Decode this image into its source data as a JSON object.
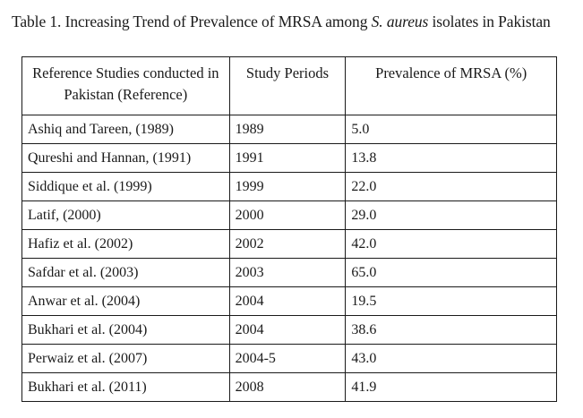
{
  "caption": {
    "prefix": "Table 1. Increasing Trend of Prevalence of MRSA among ",
    "italic": "S. aureus",
    "suffix": " isolates in Pakistan"
  },
  "columns": [
    "Reference Studies conducted in Pakistan (Reference)",
    "Study Periods",
    "Prevalence of MRSA (%)"
  ],
  "rows": [
    {
      "reference": "Ashiq and Tareen, (1989)",
      "period": "1989",
      "prevalence": "5.0"
    },
    {
      "reference": "Qureshi and Hannan, (1991)",
      "period": "1991",
      "prevalence": "13.8"
    },
    {
      "reference": "Siddique et al. (1999)",
      "period": "1999",
      "prevalence": "22.0"
    },
    {
      "reference": "Latif, (2000)",
      "period": "2000",
      "prevalence": "29.0"
    },
    {
      "reference": "Hafiz et al. (2002)",
      "period": "2002",
      "prevalence": "42.0"
    },
    {
      "reference": "Safdar et al. (2003)",
      "period": "2003",
      "prevalence": "65.0"
    },
    {
      "reference": "Anwar et al. (2004)",
      "period": "2004",
      "prevalence": "19.5"
    },
    {
      "reference": "Bukhari et al. (2004)",
      "period": "2004",
      "prevalence": "38.6"
    },
    {
      "reference": "Perwaiz et al. (2007)",
      "period": "2004-5",
      "prevalence": "43.0"
    },
    {
      "reference": "Bukhari et al. (2011)",
      "period": "2008",
      "prevalence": "41.9"
    }
  ]
}
